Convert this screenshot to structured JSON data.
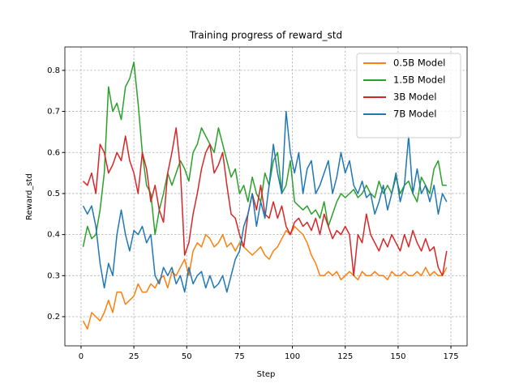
{
  "chart_data": {
    "type": "line",
    "title": "Training progress of reward_std",
    "x_label": "Step",
    "y_label": "Reward_std",
    "x": [
      1,
      3,
      5,
      7,
      9,
      11,
      13,
      15,
      17,
      19,
      21,
      23,
      25,
      27,
      29,
      31,
      33,
      35,
      37,
      39,
      41,
      43,
      45,
      47,
      49,
      51,
      53,
      55,
      57,
      59,
      61,
      63,
      65,
      67,
      69,
      71,
      73,
      75,
      77,
      79,
      81,
      83,
      85,
      87,
      89,
      91,
      93,
      95,
      97,
      99,
      101,
      103,
      105,
      107,
      109,
      111,
      113,
      115,
      117,
      119,
      121,
      123,
      125,
      127,
      129,
      131,
      133,
      135,
      137,
      139,
      141,
      143,
      145,
      147,
      149,
      151,
      153,
      155,
      157,
      159,
      161,
      163,
      165,
      167,
      169,
      171,
      173
    ],
    "series": [
      {
        "name": "0.5B Model",
        "color": "#ff7f0e",
        "values": [
          0.19,
          0.17,
          0.21,
          0.2,
          0.19,
          0.21,
          0.24,
          0.21,
          0.26,
          0.26,
          0.23,
          0.24,
          0.25,
          0.28,
          0.26,
          0.26,
          0.28,
          0.27,
          0.29,
          0.3,
          0.27,
          0.31,
          0.3,
          0.32,
          0.34,
          0.3,
          0.36,
          0.38,
          0.37,
          0.4,
          0.39,
          0.37,
          0.38,
          0.4,
          0.37,
          0.38,
          0.36,
          0.38,
          0.37,
          0.36,
          0.35,
          0.36,
          0.37,
          0.35,
          0.34,
          0.36,
          0.37,
          0.39,
          0.41,
          0.4,
          0.42,
          0.41,
          0.4,
          0.38,
          0.35,
          0.33,
          0.3,
          0.3,
          0.31,
          0.3,
          0.31,
          0.29,
          0.3,
          0.31,
          0.3,
          0.29,
          0.31,
          0.3,
          0.3,
          0.31,
          0.3,
          0.3,
          0.29,
          0.31,
          0.3,
          0.3,
          0.31,
          0.3,
          0.3,
          0.31,
          0.3,
          0.32,
          0.3,
          0.31,
          0.3,
          0.3,
          0.32
        ]
      },
      {
        "name": "1.5B Model",
        "color": "#2ca02c",
        "values": [
          0.37,
          0.42,
          0.39,
          0.4,
          0.46,
          0.55,
          0.76,
          0.7,
          0.72,
          0.68,
          0.76,
          0.78,
          0.82,
          0.72,
          0.6,
          0.52,
          0.5,
          0.4,
          0.46,
          0.5,
          0.55,
          0.52,
          0.55,
          0.58,
          0.56,
          0.53,
          0.6,
          0.62,
          0.66,
          0.64,
          0.62,
          0.6,
          0.66,
          0.62,
          0.58,
          0.54,
          0.56,
          0.5,
          0.52,
          0.48,
          0.54,
          0.5,
          0.48,
          0.55,
          0.52,
          0.58,
          0.6,
          0.5,
          0.52,
          0.58,
          0.48,
          0.47,
          0.46,
          0.47,
          0.45,
          0.46,
          0.44,
          0.48,
          0.42,
          0.45,
          0.48,
          0.5,
          0.49,
          0.5,
          0.51,
          0.49,
          0.5,
          0.52,
          0.5,
          0.49,
          0.53,
          0.5,
          0.52,
          0.5,
          0.54,
          0.5,
          0.52,
          0.53,
          0.5,
          0.48,
          0.54,
          0.52,
          0.5,
          0.56,
          0.58,
          0.52,
          0.52
        ]
      },
      {
        "name": "3B Model",
        "color": "#d62728",
        "values": [
          0.53,
          0.52,
          0.55,
          0.5,
          0.62,
          0.6,
          0.55,
          0.57,
          0.6,
          0.58,
          0.64,
          0.58,
          0.55,
          0.5,
          0.6,
          0.56,
          0.48,
          0.52,
          0.46,
          0.43,
          0.55,
          0.6,
          0.66,
          0.56,
          0.35,
          0.38,
          0.45,
          0.5,
          0.56,
          0.6,
          0.62,
          0.55,
          0.57,
          0.6,
          0.52,
          0.45,
          0.44,
          0.4,
          0.37,
          0.45,
          0.5,
          0.46,
          0.52,
          0.45,
          0.44,
          0.48,
          0.44,
          0.47,
          0.42,
          0.4,
          0.43,
          0.44,
          0.42,
          0.43,
          0.41,
          0.44,
          0.4,
          0.45,
          0.42,
          0.39,
          0.41,
          0.4,
          0.42,
          0.4,
          0.3,
          0.4,
          0.38,
          0.45,
          0.4,
          0.38,
          0.36,
          0.39,
          0.37,
          0.4,
          0.38,
          0.36,
          0.4,
          0.37,
          0.41,
          0.38,
          0.36,
          0.39,
          0.36,
          0.37,
          0.32,
          0.3,
          0.36
        ]
      },
      {
        "name": "7B Model",
        "color": "#1f77b4",
        "values": [
          0.47,
          0.45,
          0.47,
          0.42,
          0.33,
          0.27,
          0.33,
          0.3,
          0.4,
          0.46,
          0.4,
          0.36,
          0.41,
          0.4,
          0.42,
          0.38,
          0.4,
          0.3,
          0.28,
          0.32,
          0.3,
          0.32,
          0.28,
          0.3,
          0.26,
          0.32,
          0.28,
          0.3,
          0.31,
          0.27,
          0.3,
          0.27,
          0.28,
          0.3,
          0.26,
          0.3,
          0.34,
          0.36,
          0.42,
          0.45,
          0.5,
          0.42,
          0.48,
          0.44,
          0.52,
          0.62,
          0.55,
          0.5,
          0.7,
          0.6,
          0.55,
          0.6,
          0.5,
          0.56,
          0.58,
          0.5,
          0.52,
          0.55,
          0.58,
          0.5,
          0.54,
          0.6,
          0.55,
          0.58,
          0.52,
          0.5,
          0.53,
          0.49,
          0.5,
          0.45,
          0.48,
          0.52,
          0.46,
          0.5,
          0.55,
          0.48,
          0.52,
          0.64,
          0.5,
          0.56,
          0.5,
          0.52,
          0.48,
          0.52,
          0.45,
          0.5,
          0.48
        ]
      }
    ],
    "xlim": [
      -7.65,
      182.65
    ],
    "xticks": [
      0,
      25,
      50,
      75,
      100,
      125,
      150,
      175
    ],
    "ylim": [
      0.129,
      0.857
    ],
    "yticks": [
      0.2,
      0.3,
      0.4,
      0.5,
      0.6,
      0.7,
      0.8
    ],
    "grid": true,
    "legend": "upper right"
  }
}
